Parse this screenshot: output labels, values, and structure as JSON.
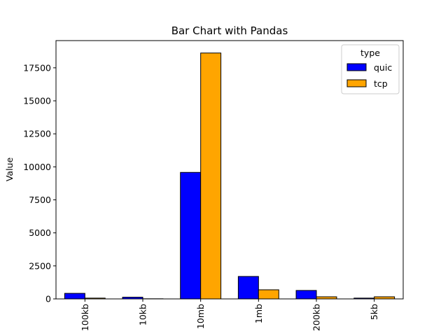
{
  "chart_data": {
    "type": "bar",
    "title": "Bar Chart with Pandas",
    "xlabel": "",
    "ylabel": "Value",
    "categories": [
      "100kb",
      "10kb",
      "10mb",
      "1mb",
      "200kb",
      "5kb"
    ],
    "series": [
      {
        "name": "quic",
        "color": "#0000ff",
        "values": [
          420,
          130,
          9580,
          1700,
          640,
          60
        ]
      },
      {
        "name": "tcp",
        "color": "#ffa500",
        "values": [
          60,
          10,
          18620,
          690,
          160,
          160
        ]
      }
    ],
    "ylim": [
      0,
      19560
    ],
    "yticks": [
      "0",
      "2500",
      "5000",
      "7500",
      "10000",
      "12500",
      "15000",
      "17500"
    ],
    "yticks_values": [
      0,
      2500,
      5000,
      7500,
      10000,
      12500,
      15000,
      17500
    ],
    "grid": false,
    "legend": {
      "title": "type",
      "position": "top-right"
    }
  }
}
